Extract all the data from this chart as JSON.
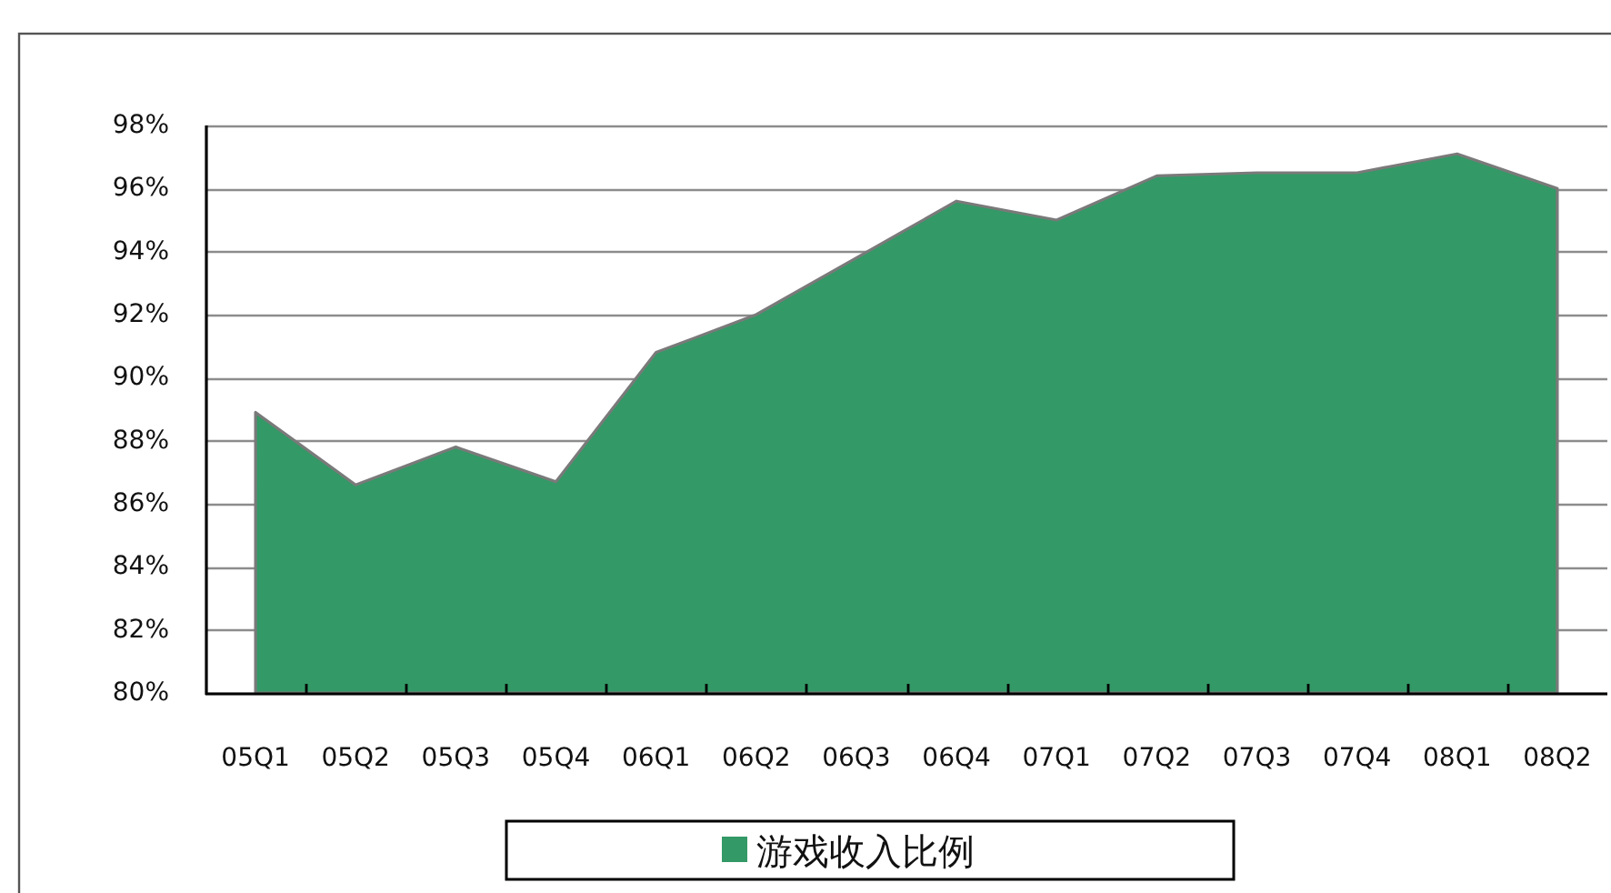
{
  "chart_data": {
    "type": "area",
    "categories": [
      "05Q1",
      "05Q2",
      "05Q3",
      "05Q4",
      "06Q1",
      "06Q2",
      "06Q3",
      "06Q4",
      "07Q1",
      "07Q2",
      "07Q3",
      "07Q4",
      "08Q1",
      "08Q2"
    ],
    "series": [
      {
        "name": "游戏收入比例",
        "color": "#339966",
        "values": [
          88.9,
          86.6,
          87.8,
          86.7,
          90.8,
          92.0,
          93.8,
          95.6,
          95.0,
          96.4,
          96.5,
          96.5,
          97.1,
          96.0
        ]
      }
    ],
    "ylim": [
      80,
      98
    ],
    "yticks": [
      {
        "value": 80,
        "label": "80%"
      },
      {
        "value": 82,
        "label": "82%"
      },
      {
        "value": 84,
        "label": "84%"
      },
      {
        "value": 86,
        "label": "86%"
      },
      {
        "value": 88,
        "label": "88%"
      },
      {
        "value": 90,
        "label": "90%"
      },
      {
        "value": 92,
        "label": "92%"
      },
      {
        "value": 94,
        "label": "94%"
      },
      {
        "value": 96,
        "label": "96%"
      },
      {
        "value": 98,
        "label": "98%"
      }
    ],
    "grid": "y",
    "legend": "bottom"
  }
}
